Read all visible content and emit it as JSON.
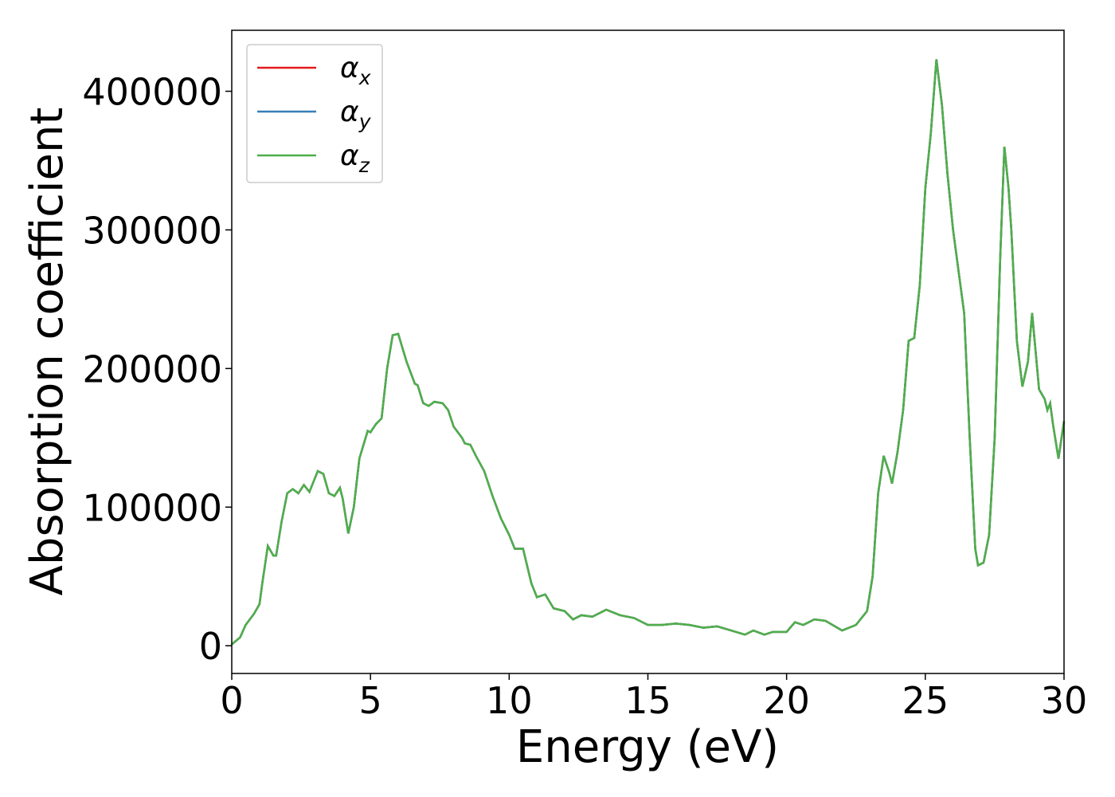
{
  "chart_data": {
    "type": "line",
    "xlabel": "Energy (eV)",
    "ylabel": "Absorption coefficient",
    "x": [
      0,
      0.3,
      0.5,
      0.8,
      1.0,
      1.1,
      1.3,
      1.5,
      1.6,
      1.8,
      2.0,
      2.2,
      2.4,
      2.6,
      2.8,
      3.1,
      3.3,
      3.5,
      3.7,
      3.9,
      4.0,
      4.2,
      4.4,
      4.6,
      4.9,
      5.0,
      5.2,
      5.4,
      5.6,
      5.8,
      6.0,
      6.3,
      6.6,
      6.7,
      6.9,
      7.1,
      7.3,
      7.6,
      7.8,
      8.0,
      8.3,
      8.4,
      8.6,
      8.8,
      9.1,
      9.4,
      9.7,
      10.0,
      10.2,
      10.5,
      10.8,
      11.0,
      11.3,
      11.6,
      12.0,
      12.3,
      12.6,
      13.0,
      13.5,
      14.0,
      14.5,
      15.0,
      15.5,
      16.0,
      16.5,
      17.0,
      17.5,
      18.0,
      18.5,
      18.8,
      19.2,
      19.5,
      20.0,
      20.3,
      20.6,
      21.0,
      21.4,
      22.0,
      22.5,
      22.9,
      23.1,
      23.3,
      23.5,
      23.7,
      23.8,
      24.0,
      24.2,
      24.4,
      24.6,
      24.8,
      25.0,
      25.2,
      25.4,
      25.6,
      25.8,
      26.0,
      26.2,
      26.4,
      26.6,
      26.8,
      26.9,
      27.1,
      27.3,
      27.5,
      27.7,
      27.85,
      28.0,
      28.1,
      28.3,
      28.5,
      28.7,
      28.85,
      29.1,
      29.3,
      29.4,
      29.5,
      29.6,
      29.8,
      30.0
    ],
    "series": [
      {
        "name": "αx",
        "color": "#e41a1c",
        "values": [
          1000,
          6000,
          15000,
          23000,
          30000,
          45000,
          72000,
          65000,
          65000,
          90000,
          110000,
          113000,
          110000,
          116000,
          111000,
          126000,
          124000,
          110000,
          108000,
          114000,
          106000,
          81000,
          100000,
          135000,
          155000,
          154000,
          160000,
          164000,
          200000,
          224000,
          225000,
          205000,
          189000,
          188000,
          175000,
          173000,
          176000,
          175000,
          170000,
          158000,
          150000,
          146000,
          145000,
          137000,
          126000,
          108000,
          92000,
          80000,
          70000,
          70000,
          45000,
          35000,
          37000,
          27000,
          25000,
          19000,
          22000,
          21000,
          26000,
          22000,
          20000,
          15000,
          15000,
          16000,
          15000,
          13000,
          14000,
          11000,
          8000,
          11000,
          8000,
          10000,
          10000,
          17000,
          15000,
          19000,
          18000,
          11000,
          15000,
          25000,
          50000,
          110000,
          137000,
          125000,
          117000,
          140000,
          170000,
          220000,
          222000,
          260000,
          330000,
          370000,
          423000,
          390000,
          340000,
          300000,
          270000,
          240000,
          150000,
          70000,
          58000,
          60000,
          80000,
          150000,
          280000,
          360000,
          330000,
          300000,
          220000,
          187000,
          205000,
          240000,
          185000,
          178000,
          170000,
          175000,
          160000,
          135000,
          162000
        ]
      },
      {
        "name": "αy",
        "color": "#377eb8",
        "values": [
          1000,
          6000,
          15000,
          23000,
          30000,
          45000,
          72000,
          65000,
          65000,
          90000,
          110000,
          113000,
          110000,
          116000,
          111000,
          126000,
          124000,
          110000,
          108000,
          114000,
          106000,
          81000,
          100000,
          135000,
          155000,
          154000,
          160000,
          164000,
          200000,
          224000,
          225000,
          205000,
          189000,
          188000,
          175000,
          173000,
          176000,
          175000,
          170000,
          158000,
          150000,
          146000,
          145000,
          137000,
          126000,
          108000,
          92000,
          80000,
          70000,
          70000,
          45000,
          35000,
          37000,
          27000,
          25000,
          19000,
          22000,
          21000,
          26000,
          22000,
          20000,
          15000,
          15000,
          16000,
          15000,
          13000,
          14000,
          11000,
          8000,
          11000,
          8000,
          10000,
          10000,
          17000,
          15000,
          19000,
          18000,
          11000,
          15000,
          25000,
          50000,
          110000,
          137000,
          125000,
          117000,
          140000,
          170000,
          220000,
          222000,
          260000,
          330000,
          370000,
          423000,
          390000,
          340000,
          300000,
          270000,
          240000,
          150000,
          70000,
          58000,
          60000,
          80000,
          150000,
          280000,
          360000,
          330000,
          300000,
          220000,
          187000,
          205000,
          240000,
          185000,
          178000,
          170000,
          175000,
          160000,
          135000,
          162000
        ]
      },
      {
        "name": "αz",
        "color": "#4daf4a",
        "values": [
          1000,
          6000,
          15000,
          23000,
          30000,
          45000,
          72000,
          65000,
          65000,
          90000,
          110000,
          113000,
          110000,
          116000,
          111000,
          126000,
          124000,
          110000,
          108000,
          114000,
          106000,
          81000,
          100000,
          135000,
          155000,
          154000,
          160000,
          164000,
          200000,
          224000,
          225000,
          205000,
          189000,
          188000,
          175000,
          173000,
          176000,
          175000,
          170000,
          158000,
          150000,
          146000,
          145000,
          137000,
          126000,
          108000,
          92000,
          80000,
          70000,
          70000,
          45000,
          35000,
          37000,
          27000,
          25000,
          19000,
          22000,
          21000,
          26000,
          22000,
          20000,
          15000,
          15000,
          16000,
          15000,
          13000,
          14000,
          11000,
          8000,
          11000,
          8000,
          10000,
          10000,
          17000,
          15000,
          19000,
          18000,
          11000,
          15000,
          25000,
          50000,
          110000,
          137000,
          125000,
          117000,
          140000,
          170000,
          220000,
          222000,
          260000,
          330000,
          370000,
          423000,
          390000,
          340000,
          300000,
          270000,
          240000,
          150000,
          70000,
          58000,
          60000,
          80000,
          150000,
          280000,
          360000,
          330000,
          300000,
          220000,
          187000,
          205000,
          240000,
          185000,
          178000,
          170000,
          175000,
          160000,
          135000,
          162000
        ]
      }
    ],
    "xlim": [
      0,
      30
    ],
    "xticks": [
      0,
      5,
      10,
      15,
      20,
      25,
      30
    ],
    "ylim": [
      -20000,
      444000
    ],
    "yticks": [
      0,
      100000,
      200000,
      300000,
      400000
    ],
    "legend": "upper left",
    "grid": false
  }
}
